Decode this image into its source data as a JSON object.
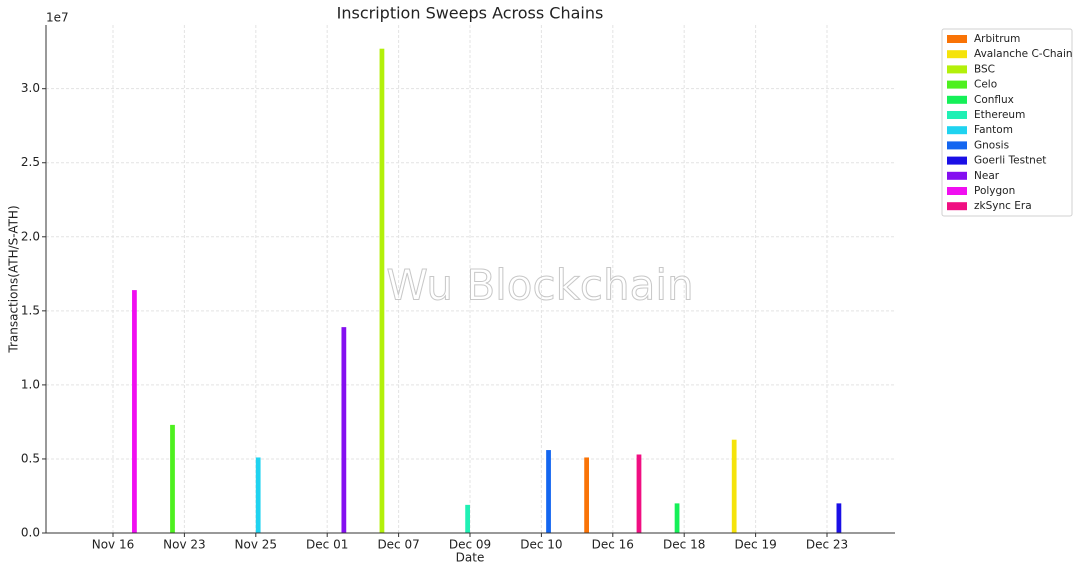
{
  "chart_data": {
    "type": "bar",
    "title": "Inscription Sweeps Across Chains",
    "xlabel": "Date",
    "ylabel": "Transactions(ATH/S-ATH)",
    "y_offset_label": "1e7",
    "watermark": "Wu Blockchain",
    "categories": [
      "Nov 16",
      "Nov 23",
      "Nov 25",
      "Dec 01",
      "Dec 07",
      "Dec 09",
      "Dec 10",
      "Dec 16",
      "Dec 18",
      "Dec 19",
      "Dec 23"
    ],
    "series": [
      {
        "name": "Arbitrum",
        "color": "#f97306",
        "values": [
          null,
          null,
          null,
          null,
          null,
          null,
          null,
          0.51,
          null,
          null,
          null
        ]
      },
      {
        "name": "Avalanche C-Chain",
        "color": "#f5e30a",
        "values": [
          null,
          null,
          null,
          null,
          null,
          null,
          null,
          null,
          null,
          0.63,
          null
        ]
      },
      {
        "name": "BSC",
        "color": "#b3f00a",
        "values": [
          null,
          null,
          null,
          null,
          3.27,
          null,
          null,
          null,
          null,
          null,
          null
        ]
      },
      {
        "name": "Celo",
        "color": "#4ef01f",
        "values": [
          null,
          0.73,
          null,
          null,
          null,
          null,
          null,
          null,
          null,
          null,
          null
        ]
      },
      {
        "name": "Conflux",
        "color": "#15f058",
        "values": [
          null,
          null,
          null,
          null,
          null,
          null,
          null,
          null,
          0.2,
          null,
          null
        ]
      },
      {
        "name": "Ethereum",
        "color": "#20f0b4",
        "values": [
          null,
          null,
          null,
          null,
          null,
          0.19,
          null,
          null,
          null,
          null,
          null
        ]
      },
      {
        "name": "Fantom",
        "color": "#1fd3f0",
        "values": [
          null,
          null,
          0.51,
          null,
          null,
          null,
          null,
          null,
          null,
          null,
          null
        ]
      },
      {
        "name": "Gnosis",
        "color": "#1466f0",
        "values": [
          null,
          null,
          null,
          null,
          null,
          null,
          0.56,
          null,
          null,
          null,
          null
        ]
      },
      {
        "name": "Goerli Testnet",
        "color": "#1a0fe6",
        "values": [
          null,
          null,
          null,
          null,
          null,
          null,
          null,
          null,
          null,
          null,
          0.2
        ]
      },
      {
        "name": "Near",
        "color": "#840ff0",
        "values": [
          null,
          null,
          null,
          1.39,
          null,
          null,
          null,
          null,
          null,
          null,
          null
        ]
      },
      {
        "name": "Polygon",
        "color": "#f00ff0",
        "values": [
          1.64,
          null,
          null,
          null,
          null,
          null,
          null,
          null,
          null,
          null,
          null
        ]
      },
      {
        "name": "zkSync Era",
        "color": "#f00f82",
        "values": [
          null,
          null,
          null,
          null,
          null,
          null,
          null,
          0.53,
          null,
          null,
          null
        ]
      }
    ],
    "ylim": [
      0,
      3.43
    ],
    "yticks": [
      {
        "value": 0,
        "label": "0.0"
      },
      0.5,
      {
        "value": 1,
        "label": "1.0"
      },
      1.5,
      {
        "value": 2,
        "label": "2.0"
      },
      2.5,
      {
        "value": 3,
        "label": "3.0"
      }
    ],
    "grid": true,
    "legend": "upper right"
  }
}
